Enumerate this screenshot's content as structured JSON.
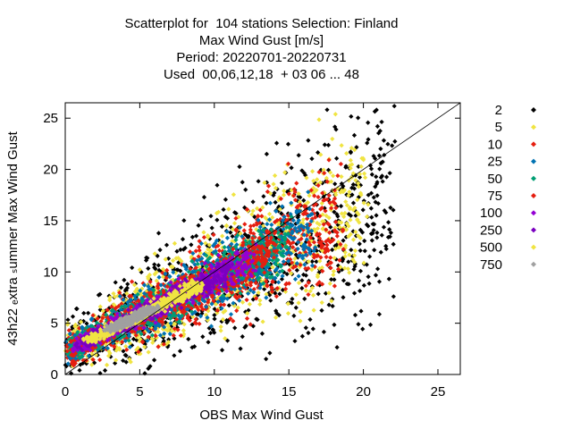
{
  "chart_data": {
    "type": "scatter",
    "title_lines": [
      "Scatterplot for  104 stations Selection: Finland",
      "Max Wind Gust [m/s]",
      "Period: 20220701-20220731",
      "Used  00,06,12,18  + 03 06 ... 48"
    ],
    "xlabel": "OBS Max Wind Gust",
    "ylabel": "43h22 ₑxtra ₛummer Max Wind Gust",
    "xlim": [
      0,
      26.5
    ],
    "ylim": [
      0,
      26.5
    ],
    "x_ticks": [
      0,
      5,
      10,
      15,
      20,
      25
    ],
    "y_ticks": [
      0,
      5,
      10,
      15,
      20,
      25
    ],
    "grid": false,
    "reference_line": "y = x",
    "legend_position": "right",
    "legend": [
      {
        "label": "2",
        "color": "#000000"
      },
      {
        "label": "5",
        "color": "#f0e442"
      },
      {
        "label": "10",
        "color": "#e51e10"
      },
      {
        "label": "25",
        "color": "#0072b2"
      },
      {
        "label": "50",
        "color": "#009e73"
      },
      {
        "label": "75",
        "color": "#e51e10"
      },
      {
        "label": "100",
        "color": "#9400d3"
      },
      {
        "label": "250",
        "color": "#7a00c0"
      },
      {
        "label": "500",
        "color": "#f0e442"
      },
      {
        "label": "750",
        "color": "#a0a0a0"
      }
    ],
    "density_bands": [
      {
        "count_label": "2",
        "color": "#000000",
        "spread": 3.4,
        "extent": [
          0.0,
          22.0
        ]
      },
      {
        "count_label": "5",
        "color": "#f0e442",
        "spread": 2.6,
        "extent": [
          0.0,
          20.0
        ]
      },
      {
        "count_label": "10",
        "color": "#e51e10",
        "spread": 2.1,
        "extent": [
          0.0,
          18.5
        ]
      },
      {
        "count_label": "25",
        "color": "#0072b2",
        "spread": 1.6,
        "extent": [
          0.0,
          16.5
        ]
      },
      {
        "count_label": "50",
        "color": "#009e73",
        "spread": 1.15,
        "extent": [
          0.3,
          15.0
        ]
      },
      {
        "count_label": "75",
        "color": "#e51e10",
        "spread": 0.95,
        "extent": [
          0.5,
          14.0
        ]
      },
      {
        "count_label": "100",
        "color": "#9400d3",
        "spread": 0.75,
        "extent": [
          0.8,
          12.5
        ]
      },
      {
        "count_label": "250",
        "color": "#7a00c0",
        "spread": 0.55,
        "extent": [
          1.0,
          11.0
        ]
      },
      {
        "count_label": "500",
        "color": "#f0e442",
        "spread": 0.35,
        "extent": [
          1.5,
          9.0
        ]
      },
      {
        "count_label": "750",
        "color": "#a0a0a0",
        "spread": 0.2,
        "extent": [
          3.0,
          6.0
        ]
      }
    ]
  }
}
